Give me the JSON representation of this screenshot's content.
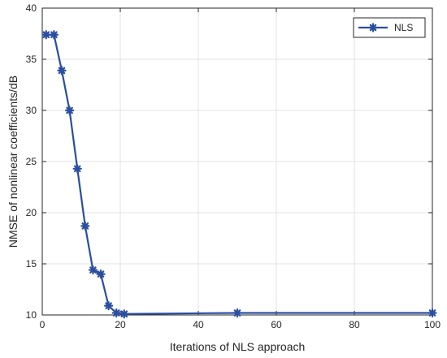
{
  "chart_data": {
    "type": "line",
    "xlabel": "Iterations of NLS approach",
    "ylabel": "NMSE of nonlinear coefficients/dB",
    "xlim": [
      0,
      100
    ],
    "ylim": [
      10,
      40
    ],
    "xticks": [
      0,
      20,
      40,
      60,
      80,
      100
    ],
    "yticks": [
      10,
      15,
      20,
      25,
      30,
      35,
      40
    ],
    "grid": true,
    "legend_position": "top-right",
    "series": [
      {
        "name": "NLS",
        "color": "#2a4ea0",
        "marker": "asterisk",
        "x": [
          1,
          3,
          5,
          7,
          9,
          11,
          13,
          15,
          17,
          19,
          21,
          50,
          100
        ],
        "y": [
          37.4,
          37.4,
          33.9,
          30.0,
          24.3,
          18.7,
          14.4,
          14.0,
          10.9,
          10.2,
          10.1,
          10.2,
          10.2
        ]
      }
    ]
  }
}
